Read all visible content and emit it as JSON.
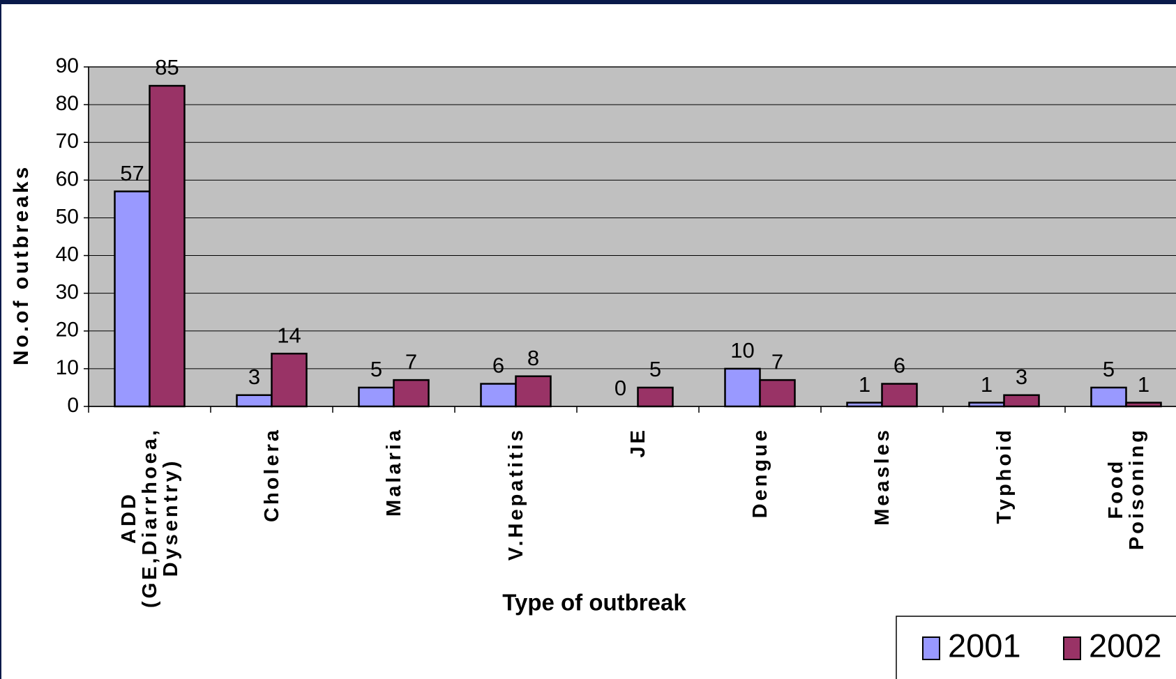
{
  "chart_data": {
    "type": "bar",
    "categories": [
      "ADD\n(GE,Diarrhoea,\nDysentry)",
      "Cholera",
      "Malaria",
      "V.Hepatitis",
      "JE",
      "Dengue",
      "Measles",
      "Typhoid",
      "Food\nPoisoning"
    ],
    "series": [
      {
        "name": "2001",
        "color": "#9999ff",
        "values": [
          57,
          3,
          5,
          6,
          0,
          10,
          1,
          1,
          5
        ]
      },
      {
        "name": "2002",
        "color": "#993366",
        "values": [
          85,
          14,
          7,
          8,
          5,
          7,
          6,
          3,
          1
        ]
      }
    ],
    "ylabel": "No.of outbreaks",
    "xlabel": "Type of outbreak",
    "ylim": [
      0,
      90
    ],
    "yticks": [
      0,
      10,
      20,
      30,
      40,
      50,
      60,
      70,
      80,
      90
    ],
    "grid": true,
    "legend": "bottom-right"
  }
}
